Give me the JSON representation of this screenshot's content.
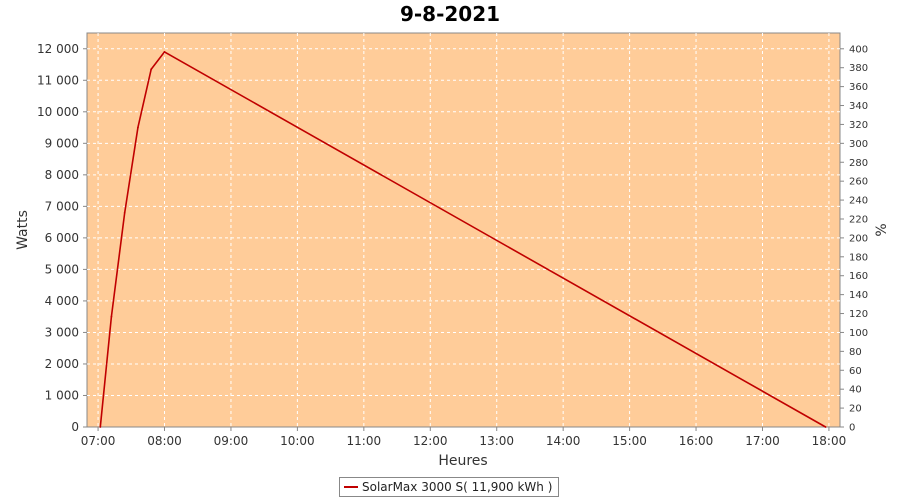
{
  "chart_data": {
    "type": "line",
    "title": "9-8-2021",
    "xlabel": "Heures",
    "ylabel": "Watts",
    "y2label": "%",
    "x_ticks": [
      "07:00",
      "08:00",
      "09:00",
      "10:00",
      "11:00",
      "12:00",
      "13:00",
      "14:00",
      "15:00",
      "16:00",
      "17:00",
      "18:00"
    ],
    "y_ticks": [
      "0",
      "1 000",
      "2 000",
      "3 000",
      "4 000",
      "5 000",
      "6 000",
      "7 000",
      "8 000",
      "9 000",
      "10 000",
      "11 000",
      "12 000"
    ],
    "y2_ticks": [
      "0",
      "20",
      "40",
      "60",
      "80",
      "100",
      "120",
      "140",
      "160",
      "180",
      "200",
      "220",
      "240",
      "260",
      "280",
      "300",
      "320",
      "340",
      "360",
      "380",
      "400"
    ],
    "xlim": [
      "06:50",
      "18:10"
    ],
    "ylim": [
      0,
      12500
    ],
    "y2lim": [
      0,
      416.7
    ],
    "grid": true,
    "legend_position": "bottom-center",
    "series": [
      {
        "name": "SolarMax 3000 S( 11,900 kWh )",
        "color": "#c00000",
        "x": [
          "07:02",
          "07:12",
          "07:24",
          "07:36",
          "07:48",
          "08:00",
          "17:57"
        ],
        "values": [
          0,
          3500,
          6800,
          9500,
          11350,
          11900,
          0
        ]
      }
    ],
    "plot_background": "#ffcc99"
  }
}
